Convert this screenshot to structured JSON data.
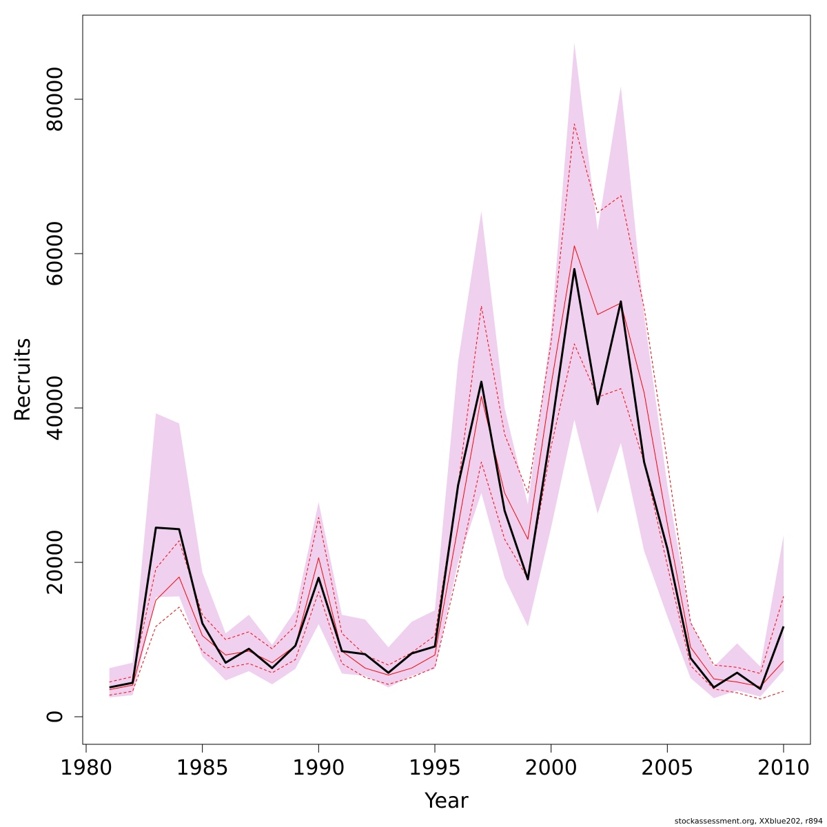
{
  "chart_data": {
    "type": "line",
    "title": "",
    "xlabel": "Year",
    "ylabel": "Recruits",
    "xlim": [
      1980,
      2010
    ],
    "ylim": [
      0,
      80000
    ],
    "x_ticks": [
      "1980",
      "1985",
      "1990",
      "1995",
      "2000",
      "2005",
      "2010"
    ],
    "y_ticks": [
      "0",
      "20000",
      "40000",
      "60000",
      "80000"
    ],
    "grid": false,
    "legend": "none",
    "x": [
      1981,
      1982,
      1983,
      1984,
      1985,
      1986,
      1987,
      1988,
      1989,
      1990,
      1991,
      1992,
      1993,
      1994,
      1995,
      1996,
      1997,
      1998,
      1999,
      2000,
      2001,
      2002,
      2003,
      2004,
      2005,
      2006,
      2007,
      2008,
      2009,
      2010
    ],
    "series": [
      {
        "role": "band_upper",
        "color": "#efd0ee",
        "values": [
          6300,
          7000,
          39300,
          38000,
          18700,
          10800,
          13200,
          9300,
          13800,
          27800,
          13200,
          12600,
          9000,
          12300,
          13800,
          46000,
          65500,
          40000,
          27500,
          50000,
          87300,
          63000,
          81700,
          52000,
          30000,
          12300,
          6500,
          9500,
          6500,
          23500
        ]
      },
      {
        "role": "band_lower",
        "color": "#efd0ee",
        "values": [
          2500,
          2800,
          15500,
          15600,
          7800,
          4700,
          5900,
          4200,
          6200,
          12000,
          5600,
          5300,
          3800,
          5300,
          6200,
          20000,
          29000,
          18000,
          11700,
          24500,
          38500,
          26300,
          35500,
          21500,
          13000,
          5000,
          2400,
          3400,
          2600,
          6000
        ]
      },
      {
        "role": "upper_dashed",
        "color": "#ff0000",
        "values": [
          4500,
          5200,
          19200,
          22800,
          13200,
          10000,
          11000,
          8800,
          11800,
          25800,
          10800,
          8000,
          6700,
          8300,
          10500,
          30000,
          53200,
          36600,
          29000,
          48500,
          76800,
          65300,
          67500,
          53000,
          33000,
          12200,
          6700,
          6400,
          5600,
          15600
        ]
      },
      {
        "role": "median",
        "color": "#ff0000",
        "values": [
          3500,
          4100,
          15100,
          18100,
          10500,
          8000,
          8500,
          7000,
          9200,
          20600,
          8500,
          6300,
          5400,
          6300,
          8000,
          24700,
          41500,
          29000,
          23000,
          43000,
          61000,
          52100,
          53600,
          42000,
          25000,
          9000,
          4900,
          4500,
          3900,
          7200
        ]
      },
      {
        "role": "lower_dashed",
        "color": "#ff0000",
        "values": [
          2800,
          3300,
          11700,
          14200,
          8500,
          6300,
          6900,
          5700,
          7400,
          16200,
          6900,
          5100,
          4200,
          5100,
          6400,
          19000,
          33000,
          23000,
          17900,
          35000,
          48300,
          41400,
          42500,
          33000,
          19600,
          6600,
          3600,
          3100,
          2300,
          3300
        ]
      },
      {
        "role": "estimate",
        "color": "#000000",
        "values": [
          3800,
          4400,
          24500,
          24300,
          12100,
          7000,
          8800,
          6300,
          9200,
          18000,
          8500,
          8100,
          5700,
          8200,
          9100,
          30000,
          43400,
          26700,
          17800,
          37000,
          58000,
          40500,
          53800,
          33000,
          21800,
          7600,
          3800,
          5700,
          3600,
          11700
        ]
      }
    ]
  },
  "footer": {
    "text": "stockassessment.org, XXblue202, r894"
  }
}
